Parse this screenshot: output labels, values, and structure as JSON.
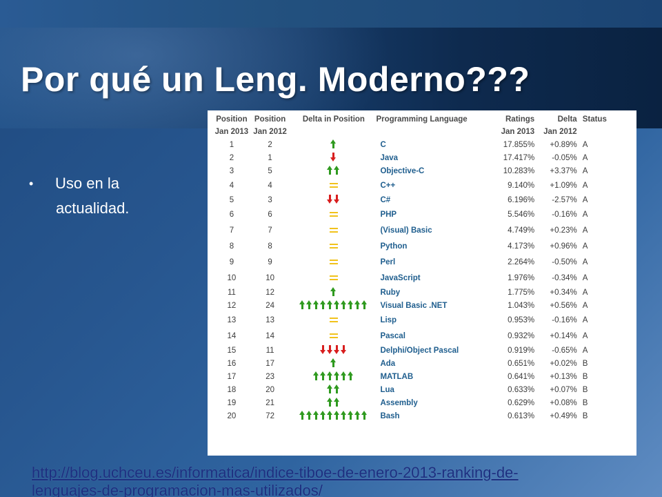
{
  "slide": {
    "title": "Por qué un Leng. Moderno???",
    "bullet": {
      "marker": "•",
      "line1": "Uso en la",
      "line2": "actualidad."
    },
    "source_link": {
      "line1": "http://blog.uchceu.es/informatica/indice-tiboe-de-enero-2013-ranking-de-",
      "line2": "lenguajes-de-programacion-mas-utilizados/"
    }
  },
  "colors": {
    "up_arrow": "#2f9a1f",
    "down_arrow": "#d81e1e",
    "equal": "#f1c21b",
    "language_text": "#1f5e8e"
  },
  "table": {
    "headers": {
      "pos13": "Position",
      "pos12": "Position",
      "delta_pos": "Delta in Position",
      "language": "Programming Language",
      "ratings": "Ratings",
      "delta": "Delta",
      "status": "Status"
    },
    "subheaders": {
      "pos13": "Jan 2013",
      "pos12": "Jan 2012",
      "ratings": "Jan 2013",
      "delta": "Jan 2012"
    },
    "rows": [
      {
        "pos13": "1",
        "pos12": "2",
        "trend": "up",
        "count": 1,
        "lang": "C",
        "rating": "17.855%",
        "delta": "+0.89%",
        "status": "A"
      },
      {
        "pos13": "2",
        "pos12": "1",
        "trend": "down",
        "count": 1,
        "lang": "Java",
        "rating": "17.417%",
        "delta": "-0.05%",
        "status": "A"
      },
      {
        "pos13": "3",
        "pos12": "5",
        "trend": "up",
        "count": 2,
        "lang": "Objective-C",
        "rating": "10.283%",
        "delta": "+3.37%",
        "status": "A"
      },
      {
        "pos13": "4",
        "pos12": "4",
        "trend": "equal",
        "count": 1,
        "lang": "C++",
        "rating": "9.140%",
        "delta": "+1.09%",
        "status": "A"
      },
      {
        "pos13": "5",
        "pos12": "3",
        "trend": "down",
        "count": 2,
        "lang": "C#",
        "rating": "6.196%",
        "delta": "-2.57%",
        "status": "A"
      },
      {
        "pos13": "6",
        "pos12": "6",
        "trend": "equal",
        "count": 1,
        "lang": "PHP",
        "rating": "5.546%",
        "delta": "-0.16%",
        "status": "A"
      },
      {
        "pos13": "7",
        "pos12": "7",
        "trend": "equal",
        "count": 1,
        "lang": "(Visual) Basic",
        "rating": "4.749%",
        "delta": "+0.23%",
        "status": "A"
      },
      {
        "pos13": "8",
        "pos12": "8",
        "trend": "equal",
        "count": 1,
        "lang": "Python",
        "rating": "4.173%",
        "delta": "+0.96%",
        "status": "A"
      },
      {
        "pos13": "9",
        "pos12": "9",
        "trend": "equal",
        "count": 1,
        "lang": "Perl",
        "rating": "2.264%",
        "delta": "-0.50%",
        "status": "A"
      },
      {
        "pos13": "10",
        "pos12": "10",
        "trend": "equal",
        "count": 1,
        "lang": "JavaScript",
        "rating": "1.976%",
        "delta": "-0.34%",
        "status": "A"
      },
      {
        "pos13": "11",
        "pos12": "12",
        "trend": "up",
        "count": 1,
        "lang": "Ruby",
        "rating": "1.775%",
        "delta": "+0.34%",
        "status": "A"
      },
      {
        "pos13": "12",
        "pos12": "24",
        "trend": "up",
        "count": 10,
        "lang": "Visual Basic .NET",
        "rating": "1.043%",
        "delta": "+0.56%",
        "status": "A"
      },
      {
        "pos13": "13",
        "pos12": "13",
        "trend": "equal",
        "count": 1,
        "lang": "Lisp",
        "rating": "0.953%",
        "delta": "-0.16%",
        "status": "A"
      },
      {
        "pos13": "14",
        "pos12": "14",
        "trend": "equal",
        "count": 1,
        "lang": "Pascal",
        "rating": "0.932%",
        "delta": "+0.14%",
        "status": "A"
      },
      {
        "pos13": "15",
        "pos12": "11",
        "trend": "down",
        "count": 4,
        "lang": "Delphi/Object Pascal",
        "rating": "0.919%",
        "delta": "-0.65%",
        "status": "A"
      },
      {
        "pos13": "16",
        "pos12": "17",
        "trend": "up",
        "count": 1,
        "lang": "Ada",
        "rating": "0.651%",
        "delta": "+0.02%",
        "status": "B"
      },
      {
        "pos13": "17",
        "pos12": "23",
        "trend": "up",
        "count": 6,
        "lang": "MATLAB",
        "rating": "0.641%",
        "delta": "+0.13%",
        "status": "B"
      },
      {
        "pos13": "18",
        "pos12": "20",
        "trend": "up",
        "count": 2,
        "lang": "Lua",
        "rating": "0.633%",
        "delta": "+0.07%",
        "status": "B"
      },
      {
        "pos13": "19",
        "pos12": "21",
        "trend": "up",
        "count": 2,
        "lang": "Assembly",
        "rating": "0.629%",
        "delta": "+0.08%",
        "status": "B"
      },
      {
        "pos13": "20",
        "pos12": "72",
        "trend": "up",
        "count": 10,
        "lang": "Bash",
        "rating": "0.613%",
        "delta": "+0.49%",
        "status": "B"
      }
    ]
  }
}
